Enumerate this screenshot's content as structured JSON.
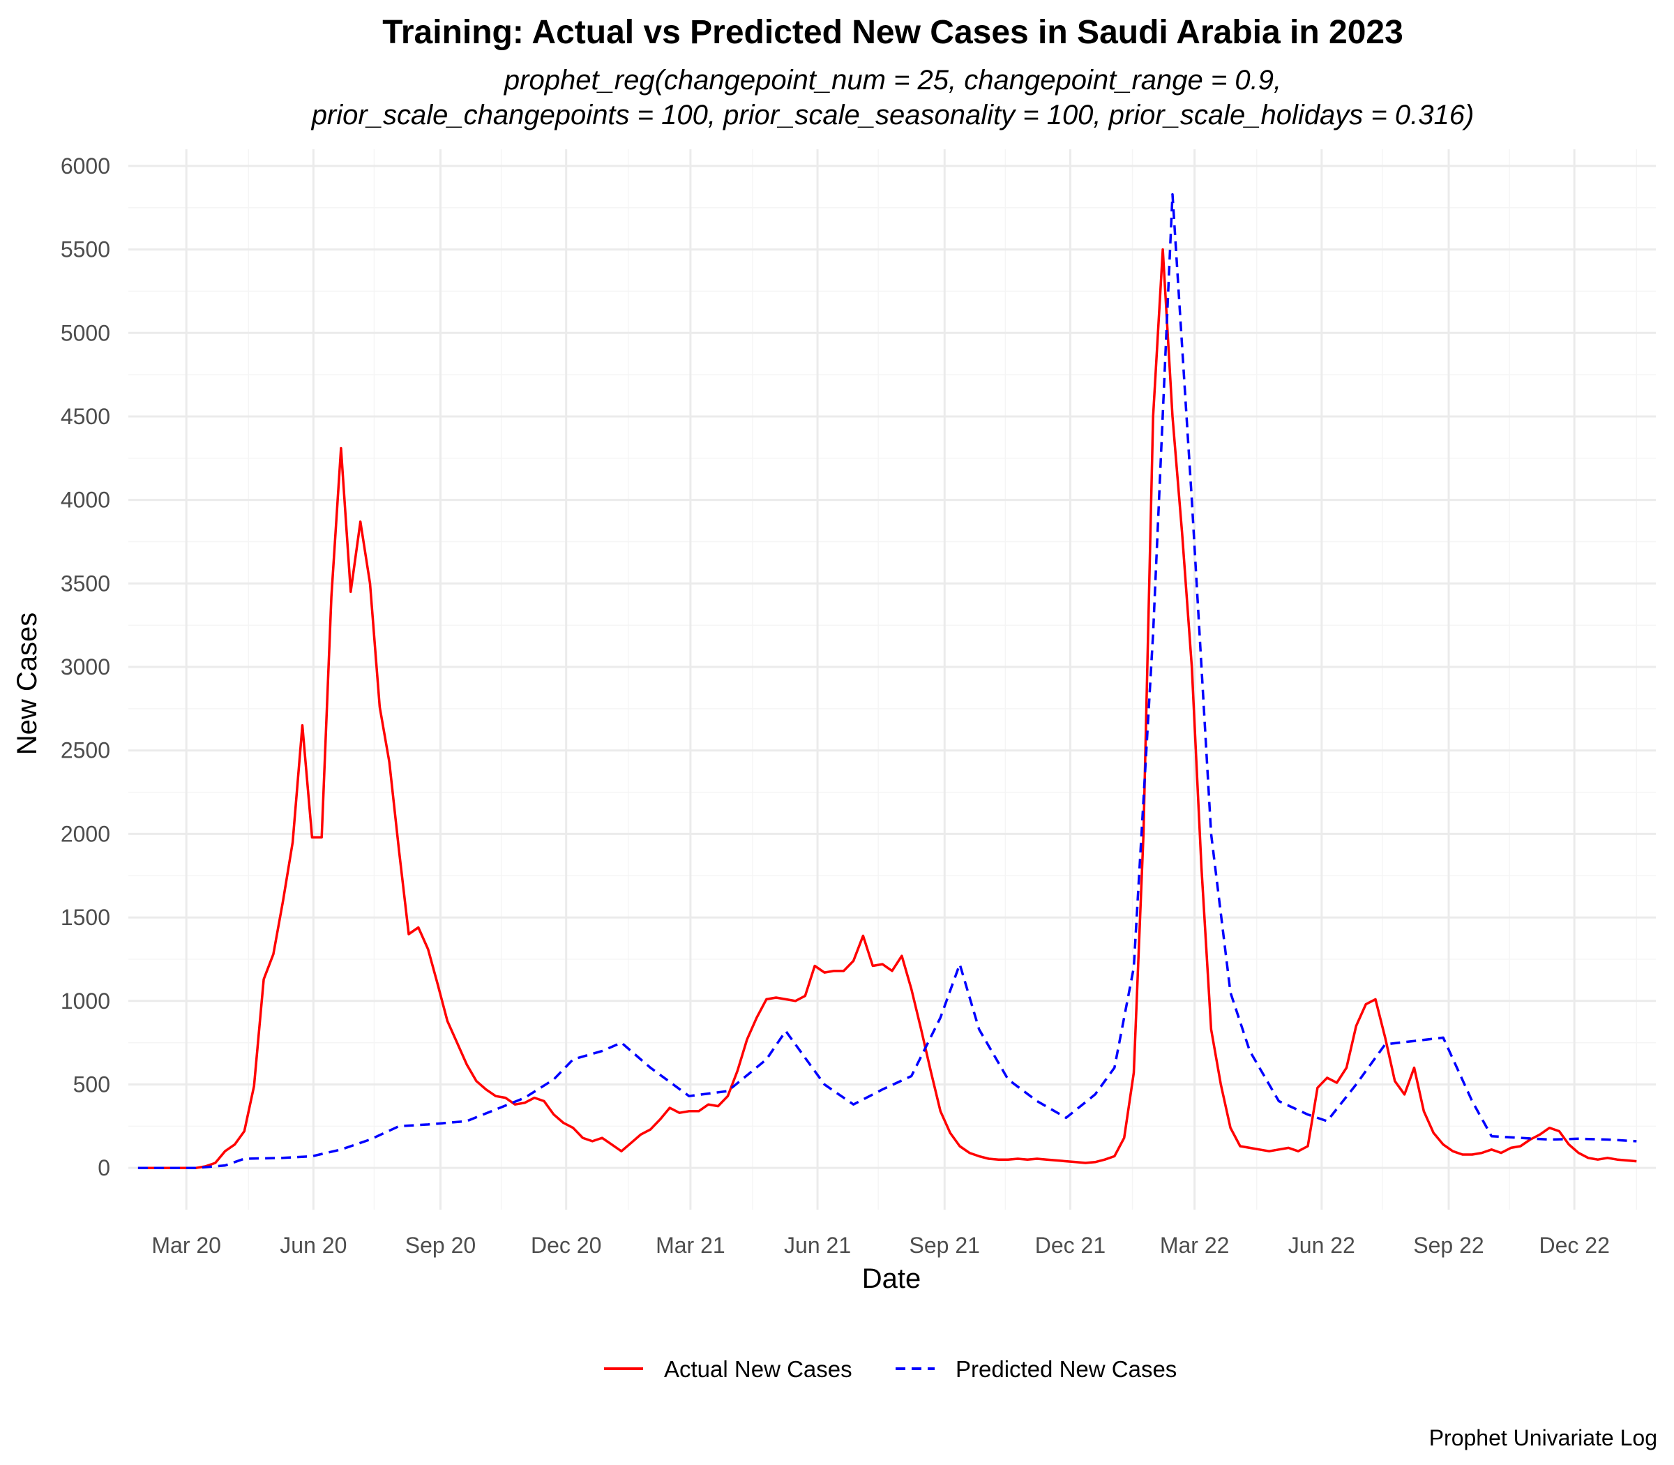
{
  "chart_data": {
    "type": "line",
    "title": "Training: Actual vs Predicted New Cases in Saudi Arabia in 2023",
    "subtitle": [
      "prophet_reg(changepoint_num = 25, changepoint_range = 0.9,",
      "prior_scale_changepoints = 100, prior_scale_seasonality = 100, prior_scale_holidays = 0.316)"
    ],
    "xlabel": "Date",
    "ylabel": "New Cases",
    "caption": "Prophet Univariate Log",
    "xlim": [
      "2020-01-19",
      "2023-01-29"
    ],
    "ylim": [
      -250,
      6100
    ],
    "x_ticks": [
      {
        "date": "2020-03-01",
        "label": "Mar 20"
      },
      {
        "date": "2020-06-01",
        "label": "Jun 20"
      },
      {
        "date": "2020-09-01",
        "label": "Sep 20"
      },
      {
        "date": "2020-12-01",
        "label": "Dec 20"
      },
      {
        "date": "2021-03-01",
        "label": "Mar 21"
      },
      {
        "date": "2021-06-01",
        "label": "Jun 21"
      },
      {
        "date": "2021-09-01",
        "label": "Sep 21"
      },
      {
        "date": "2021-12-01",
        "label": "Dec 21"
      },
      {
        "date": "2022-03-01",
        "label": "Mar 22"
      },
      {
        "date": "2022-06-01",
        "label": "Jun 22"
      },
      {
        "date": "2022-09-01",
        "label": "Sep 22"
      },
      {
        "date": "2022-12-01",
        "label": "Dec 22"
      }
    ],
    "x_minor_ticks": [
      "2020-01-15",
      "2020-04-15",
      "2020-07-15",
      "2020-10-15",
      "2021-01-15",
      "2021-04-15",
      "2021-07-15",
      "2021-10-15",
      "2022-01-15",
      "2022-04-15",
      "2022-07-15",
      "2022-10-15",
      "2023-01-15"
    ],
    "y_ticks": [
      0,
      500,
      1000,
      1500,
      2000,
      2500,
      3000,
      3500,
      4000,
      4500,
      5000,
      5500,
      6000
    ],
    "y_minor_ticks": [
      250,
      750,
      1250,
      1750,
      2250,
      2750,
      3250,
      3750,
      4250,
      4750,
      5250,
      5750
    ],
    "grid": true,
    "legend": {
      "position": "bottom",
      "entries": [
        "Actual New Cases",
        "Predicted New Cases"
      ]
    },
    "series": [
      {
        "name": "Actual New Cases",
        "color": "#FF0000",
        "style": "solid",
        "points": [
          [
            "2020-01-26",
            0
          ],
          [
            "2020-02-02",
            0
          ],
          [
            "2020-02-09",
            0
          ],
          [
            "2020-02-16",
            0
          ],
          [
            "2020-02-23",
            0
          ],
          [
            "2020-03-01",
            0
          ],
          [
            "2020-03-08",
            0
          ],
          [
            "2020-03-15",
            10
          ],
          [
            "2020-03-22",
            30
          ],
          [
            "2020-03-29",
            100
          ],
          [
            "2020-04-05",
            140
          ],
          [
            "2020-04-12",
            220
          ],
          [
            "2020-04-19",
            490
          ],
          [
            "2020-04-26",
            1130
          ],
          [
            "2020-05-03",
            1280
          ],
          [
            "2020-05-10",
            1600
          ],
          [
            "2020-05-17",
            1950
          ],
          [
            "2020-05-24",
            2650
          ],
          [
            "2020-05-31",
            1980
          ],
          [
            "2020-06-07",
            1980
          ],
          [
            "2020-06-14",
            3420
          ],
          [
            "2020-06-21",
            4310
          ],
          [
            "2020-06-28",
            3450
          ],
          [
            "2020-07-05",
            3870
          ],
          [
            "2020-07-12",
            3500
          ],
          [
            "2020-07-19",
            2760
          ],
          [
            "2020-07-26",
            2430
          ],
          [
            "2020-08-02",
            1900
          ],
          [
            "2020-08-09",
            1400
          ],
          [
            "2020-08-16",
            1440
          ],
          [
            "2020-08-23",
            1310
          ],
          [
            "2020-08-30",
            1100
          ],
          [
            "2020-09-06",
            880
          ],
          [
            "2020-09-13",
            750
          ],
          [
            "2020-09-20",
            620
          ],
          [
            "2020-09-27",
            520
          ],
          [
            "2020-10-04",
            470
          ],
          [
            "2020-10-11",
            430
          ],
          [
            "2020-10-18",
            420
          ],
          [
            "2020-10-25",
            380
          ],
          [
            "2020-11-01",
            390
          ],
          [
            "2020-11-08",
            420
          ],
          [
            "2020-11-15",
            400
          ],
          [
            "2020-11-22",
            320
          ],
          [
            "2020-11-29",
            270
          ],
          [
            "2020-12-06",
            240
          ],
          [
            "2020-12-13",
            180
          ],
          [
            "2020-12-20",
            160
          ],
          [
            "2020-12-27",
            180
          ],
          [
            "2021-01-03",
            140
          ],
          [
            "2021-01-10",
            100
          ],
          [
            "2021-01-17",
            150
          ],
          [
            "2021-01-24",
            200
          ],
          [
            "2021-01-31",
            230
          ],
          [
            "2021-02-07",
            290
          ],
          [
            "2021-02-14",
            360
          ],
          [
            "2021-02-21",
            330
          ],
          [
            "2021-02-28",
            340
          ],
          [
            "2021-03-07",
            340
          ],
          [
            "2021-03-14",
            380
          ],
          [
            "2021-03-21",
            370
          ],
          [
            "2021-03-28",
            430
          ],
          [
            "2021-04-04",
            580
          ],
          [
            "2021-04-11",
            770
          ],
          [
            "2021-04-18",
            900
          ],
          [
            "2021-04-25",
            1010
          ],
          [
            "2021-05-02",
            1020
          ],
          [
            "2021-05-09",
            1010
          ],
          [
            "2021-05-16",
            1000
          ],
          [
            "2021-05-23",
            1030
          ],
          [
            "2021-05-30",
            1210
          ],
          [
            "2021-06-06",
            1170
          ],
          [
            "2021-06-13",
            1180
          ],
          [
            "2021-06-20",
            1180
          ],
          [
            "2021-06-27",
            1240
          ],
          [
            "2021-07-04",
            1390
          ],
          [
            "2021-07-11",
            1210
          ],
          [
            "2021-07-18",
            1220
          ],
          [
            "2021-07-25",
            1180
          ],
          [
            "2021-08-01",
            1270
          ],
          [
            "2021-08-08",
            1070
          ],
          [
            "2021-08-15",
            830
          ],
          [
            "2021-08-22",
            580
          ],
          [
            "2021-08-29",
            340
          ],
          [
            "2021-09-05",
            210
          ],
          [
            "2021-09-12",
            130
          ],
          [
            "2021-09-19",
            90
          ],
          [
            "2021-09-26",
            70
          ],
          [
            "2021-10-03",
            55
          ],
          [
            "2021-10-10",
            50
          ],
          [
            "2021-10-17",
            50
          ],
          [
            "2021-10-24",
            55
          ],
          [
            "2021-10-31",
            50
          ],
          [
            "2021-11-07",
            55
          ],
          [
            "2021-11-14",
            50
          ],
          [
            "2021-11-21",
            45
          ],
          [
            "2021-11-28",
            40
          ],
          [
            "2021-12-05",
            35
          ],
          [
            "2021-12-12",
            30
          ],
          [
            "2021-12-19",
            35
          ],
          [
            "2021-12-26",
            50
          ],
          [
            "2022-01-02",
            70
          ],
          [
            "2022-01-09",
            180
          ],
          [
            "2022-01-16",
            570
          ],
          [
            "2022-01-23",
            2000
          ],
          [
            "2022-01-30",
            4500
          ],
          [
            "2022-02-06",
            5500
          ],
          [
            "2022-02-13",
            4500
          ],
          [
            "2022-02-20",
            3800
          ],
          [
            "2022-02-27",
            3000
          ],
          [
            "2022-03-06",
            1800
          ],
          [
            "2022-03-13",
            830
          ],
          [
            "2022-03-20",
            500
          ],
          [
            "2022-03-27",
            240
          ],
          [
            "2022-04-03",
            130
          ],
          [
            "2022-04-10",
            120
          ],
          [
            "2022-04-17",
            110
          ],
          [
            "2022-04-24",
            100
          ],
          [
            "2022-05-01",
            110
          ],
          [
            "2022-05-08",
            120
          ],
          [
            "2022-05-15",
            100
          ],
          [
            "2022-05-22",
            130
          ],
          [
            "2022-05-29",
            480
          ],
          [
            "2022-06-05",
            540
          ],
          [
            "2022-06-12",
            510
          ],
          [
            "2022-06-19",
            600
          ],
          [
            "2022-06-26",
            850
          ],
          [
            "2022-07-03",
            980
          ],
          [
            "2022-07-10",
            1010
          ],
          [
            "2022-07-17",
            780
          ],
          [
            "2022-07-24",
            520
          ],
          [
            "2022-07-31",
            440
          ],
          [
            "2022-08-07",
            600
          ],
          [
            "2022-08-14",
            340
          ],
          [
            "2022-08-21",
            210
          ],
          [
            "2022-08-28",
            140
          ],
          [
            "2022-09-04",
            100
          ],
          [
            "2022-09-11",
            80
          ],
          [
            "2022-09-18",
            80
          ],
          [
            "2022-09-25",
            90
          ],
          [
            "2022-10-02",
            110
          ],
          [
            "2022-10-09",
            90
          ],
          [
            "2022-10-16",
            120
          ],
          [
            "2022-10-23",
            130
          ],
          [
            "2022-10-30",
            170
          ],
          [
            "2022-11-06",
            200
          ],
          [
            "2022-11-13",
            240
          ],
          [
            "2022-11-20",
            220
          ],
          [
            "2022-11-27",
            140
          ],
          [
            "2022-12-04",
            90
          ],
          [
            "2022-12-11",
            60
          ],
          [
            "2022-12-18",
            50
          ],
          [
            "2022-12-25",
            60
          ],
          [
            "2023-01-01",
            50
          ],
          [
            "2023-01-08",
            45
          ],
          [
            "2023-01-15",
            40
          ]
        ]
      },
      {
        "name": "Predicted New Cases",
        "color": "#0000FF",
        "style": "dashed",
        "points": [
          [
            "2020-01-26",
            0
          ],
          [
            "2020-02-23",
            0
          ],
          [
            "2020-03-08",
            0
          ],
          [
            "2020-03-29",
            15
          ],
          [
            "2020-04-12",
            55
          ],
          [
            "2020-05-10",
            60
          ],
          [
            "2020-05-31",
            70
          ],
          [
            "2020-06-21",
            110
          ],
          [
            "2020-07-12",
            170
          ],
          [
            "2020-08-02",
            250
          ],
          [
            "2020-08-23",
            260
          ],
          [
            "2020-09-20",
            280
          ],
          [
            "2020-10-11",
            350
          ],
          [
            "2020-11-01",
            420
          ],
          [
            "2020-11-22",
            530
          ],
          [
            "2020-12-06",
            650
          ],
          [
            "2020-12-27",
            700
          ],
          [
            "2021-01-10",
            750
          ],
          [
            "2021-01-31",
            600
          ],
          [
            "2021-02-28",
            430
          ],
          [
            "2021-03-28",
            460
          ],
          [
            "2021-04-25",
            650
          ],
          [
            "2021-05-09",
            820
          ],
          [
            "2021-06-06",
            500
          ],
          [
            "2021-06-27",
            380
          ],
          [
            "2021-07-18",
            470
          ],
          [
            "2021-08-08",
            550
          ],
          [
            "2021-08-29",
            900
          ],
          [
            "2021-09-12",
            1220
          ],
          [
            "2021-09-26",
            830
          ],
          [
            "2021-10-17",
            530
          ],
          [
            "2021-11-07",
            400
          ],
          [
            "2021-11-28",
            300
          ],
          [
            "2021-12-19",
            440
          ],
          [
            "2022-01-02",
            600
          ],
          [
            "2022-01-16",
            1200
          ],
          [
            "2022-01-30",
            3200
          ],
          [
            "2022-02-13",
            5830
          ],
          [
            "2022-02-27",
            4000
          ],
          [
            "2022-03-13",
            2000
          ],
          [
            "2022-03-27",
            1050
          ],
          [
            "2022-04-10",
            700
          ],
          [
            "2022-05-01",
            400
          ],
          [
            "2022-05-22",
            320
          ],
          [
            "2022-06-05",
            280
          ],
          [
            "2022-06-26",
            500
          ],
          [
            "2022-07-17",
            740
          ],
          [
            "2022-08-07",
            760
          ],
          [
            "2022-08-28",
            780
          ],
          [
            "2022-09-18",
            400
          ],
          [
            "2022-10-02",
            190
          ],
          [
            "2022-10-23",
            180
          ],
          [
            "2022-11-13",
            170
          ],
          [
            "2022-12-04",
            175
          ],
          [
            "2022-12-25",
            170
          ],
          [
            "2023-01-15",
            160
          ]
        ]
      }
    ]
  }
}
